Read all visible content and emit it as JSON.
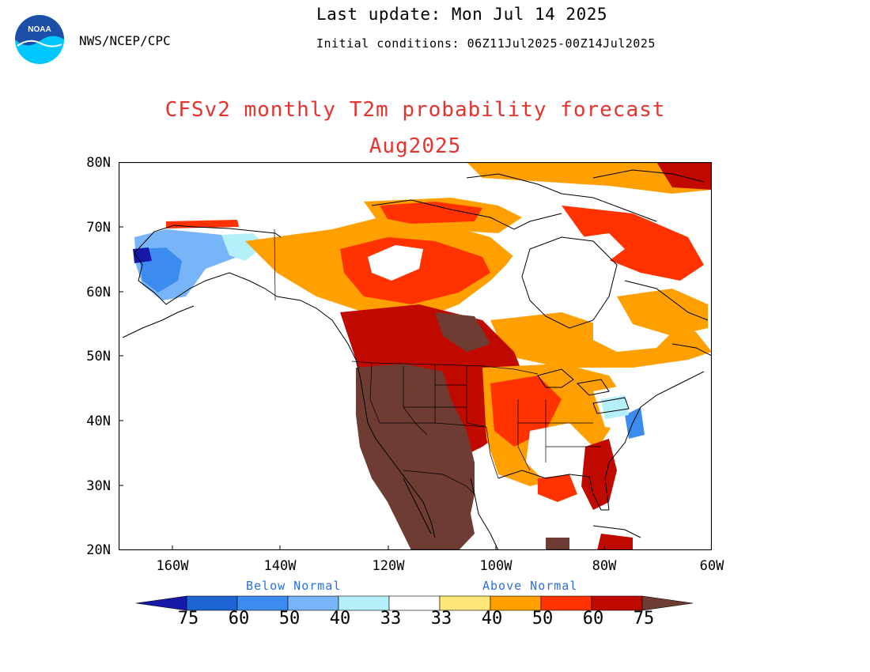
{
  "header": {
    "org_label": "NWS/NCEP/CPC",
    "last_update": "Last update: Mon Jul 14 2025",
    "initial_conditions": "Initial conditions: 06Z11Jul2025-00Z14Jul2025",
    "logo_icon": "noaa-logo-icon",
    "logo_text": "NOAA"
  },
  "title": "CFSv2 monthly T2m probability forecast",
  "subtitle": "Aug2025",
  "title_color": "#e8322d",
  "axes": {
    "lat_labels": [
      "80N",
      "70N",
      "60N",
      "50N",
      "40N",
      "30N",
      "20N"
    ],
    "lon_labels": [
      "160W",
      "140W",
      "120W",
      "100W",
      "80W",
      "60W"
    ],
    "lat_range": [
      20,
      80
    ],
    "lon_range": [
      -170,
      -60
    ]
  },
  "legend": {
    "below_label": "Below Normal",
    "above_label": "Above Normal",
    "below_values": [
      "75",
      "60",
      "50",
      "40",
      "33"
    ],
    "above_values": [
      "33",
      "40",
      "50",
      "60",
      "75"
    ],
    "below_colors": [
      "#1818a8",
      "#1e64d2",
      "#3c8cf0",
      "#78b4f8",
      "#b4f0fa"
    ],
    "normal_color": "#ffffff",
    "above_colors": [
      "#ffe678",
      "#ffa000",
      "#ff3200",
      "#c00a00",
      "#6e3c32"
    ]
  }
}
